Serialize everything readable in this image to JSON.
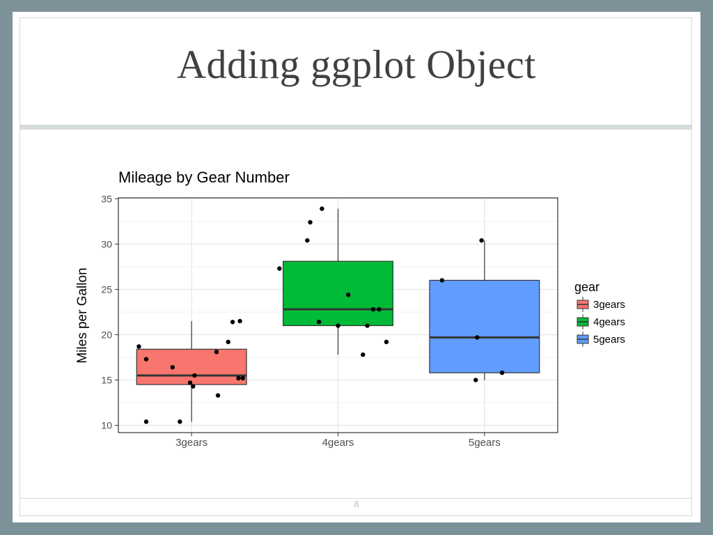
{
  "slide": {
    "title": "Adding ggplot Object",
    "page_number": "8"
  },
  "chart_data": {
    "type": "boxplot",
    "title": "Mileage by Gear Number",
    "xlabel": "",
    "ylabel": "Miles per Gallon",
    "ylim": [
      9.2,
      35.1
    ],
    "yticks": [
      10,
      15,
      20,
      25,
      30,
      35
    ],
    "categories": [
      "3gears",
      "4gears",
      "5gears"
    ],
    "grid": true,
    "legend": {
      "title": "gear",
      "position": "right",
      "entries": [
        "3gears",
        "4gears",
        "5gears"
      ]
    },
    "colors": [
      "#f8766d",
      "#00ba38",
      "#619cff"
    ],
    "boxes": [
      {
        "name": "3gears",
        "min": 10.4,
        "q1": 14.5,
        "median": 15.5,
        "q3": 18.4,
        "max": 21.5
      },
      {
        "name": "4gears",
        "min": 17.8,
        "q1": 21.0,
        "median": 22.8,
        "q3": 28.1,
        "max": 33.9
      },
      {
        "name": "5gears",
        "min": 15.0,
        "q1": 15.8,
        "median": 19.7,
        "q3": 26.0,
        "max": 30.4
      }
    ],
    "points": [
      [
        {
          "x": -0.36,
          "y": 18.7
        },
        {
          "x": -0.31,
          "y": 17.3
        },
        {
          "x": -0.31,
          "y": 10.4
        },
        {
          "x": -0.13,
          "y": 16.4
        },
        {
          "x": -0.08,
          "y": 10.4
        },
        {
          "x": -0.01,
          "y": 14.7
        },
        {
          "x": 0.01,
          "y": 14.3
        },
        {
          "x": 0.02,
          "y": 15.5
        },
        {
          "x": 0.17,
          "y": 18.1
        },
        {
          "x": 0.18,
          "y": 13.3
        },
        {
          "x": 0.25,
          "y": 19.2
        },
        {
          "x": 0.28,
          "y": 21.4
        },
        {
          "x": 0.32,
          "y": 15.2
        },
        {
          "x": 0.33,
          "y": 21.5
        },
        {
          "x": 0.35,
          "y": 15.2
        }
      ],
      [
        {
          "x": -0.4,
          "y": 27.3
        },
        {
          "x": -0.21,
          "y": 30.4
        },
        {
          "x": -0.19,
          "y": 32.4
        },
        {
          "x": -0.13,
          "y": 21.4
        },
        {
          "x": -0.11,
          "y": 33.9
        },
        {
          "x": 0.0,
          "y": 21.0
        },
        {
          "x": 0.07,
          "y": 24.4
        },
        {
          "x": 0.17,
          "y": 17.8
        },
        {
          "x": 0.2,
          "y": 21.0
        },
        {
          "x": 0.24,
          "y": 22.8
        },
        {
          "x": 0.28,
          "y": 22.8
        },
        {
          "x": 0.33,
          "y": 19.2
        }
      ],
      [
        {
          "x": -0.29,
          "y": 26.0
        },
        {
          "x": -0.06,
          "y": 15.0
        },
        {
          "x": -0.05,
          "y": 19.7
        },
        {
          "x": -0.02,
          "y": 30.4
        },
        {
          "x": 0.12,
          "y": 15.8
        }
      ]
    ]
  }
}
